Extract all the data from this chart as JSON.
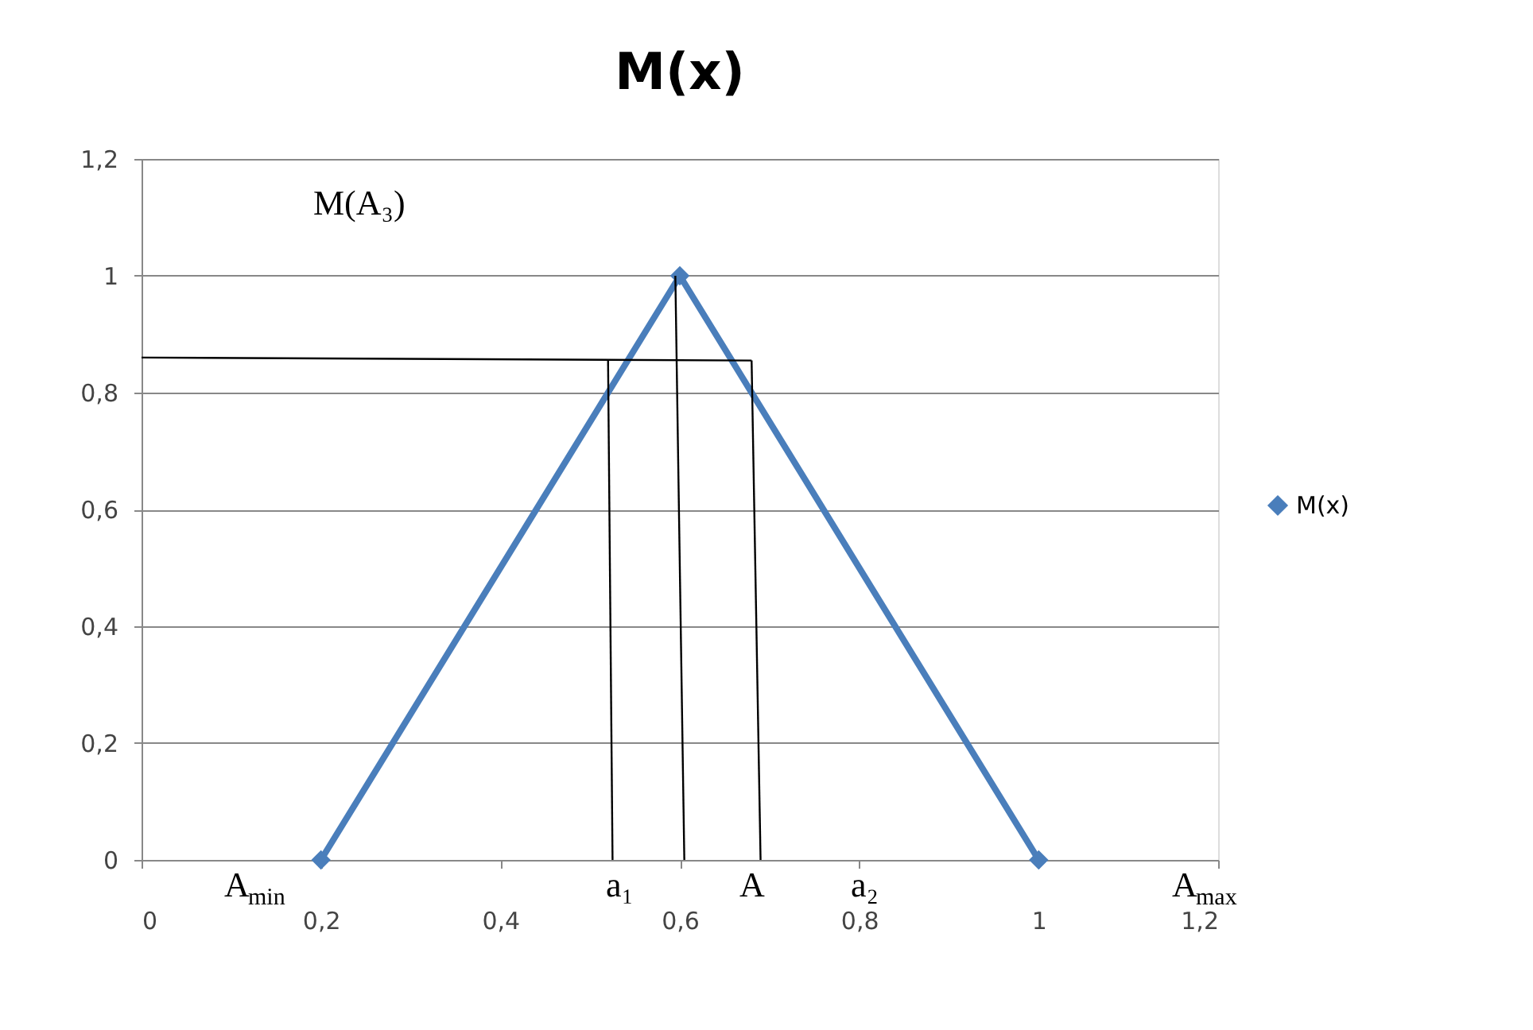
{
  "chart_data": {
    "type": "line",
    "title": "M(x)",
    "series": [
      {
        "name": "M(x)",
        "color": "#4a7ebb",
        "marker": "diamond",
        "x": [
          0.2,
          0.6,
          1.0
        ],
        "values": [
          0,
          1,
          0
        ]
      },
      {
        "type": "line",
        "color": "#000000",
        "marker": "none",
        "x": [
          0.0,
          0.68
        ],
        "values": [
          0.86,
          0.855
        ]
      },
      {
        "type": "line",
        "color": "#000000",
        "marker": "none",
        "x": [
          0.52,
          0.525
        ],
        "values": [
          0.855,
          0
        ]
      },
      {
        "type": "line",
        "color": "#000000",
        "marker": "none",
        "x": [
          0.595,
          0.605
        ],
        "values": [
          1,
          0
        ]
      },
      {
        "type": "line",
        "color": "#000000",
        "marker": "none",
        "x": [
          0.68,
          0.69
        ],
        "values": [
          0.855,
          0
        ]
      }
    ],
    "xlim": [
      0,
      1.2
    ],
    "ylim": [
      0,
      1.2
    ],
    "xticks": [
      0,
      {
        "value": 0.2,
        "label": "0,2"
      },
      {
        "value": 0.4,
        "label": "0,4"
      },
      {
        "value": 0.6,
        "label": "0,6"
      },
      {
        "value": 0.8,
        "label": "0,8"
      },
      1,
      {
        "value": 1.2,
        "label": "1,2"
      }
    ],
    "yticks": [
      0,
      {
        "value": 0.2,
        "label": "0,2"
      },
      {
        "value": 0.4,
        "label": "0,4"
      },
      {
        "value": 0.6,
        "label": "0,6"
      },
      {
        "value": 0.8,
        "label": "0,8"
      },
      1,
      {
        "value": 1.2,
        "label": "1,2"
      }
    ],
    "grid": "y",
    "legend": "right",
    "annotations": [
      "M(A₃)",
      "A$_{min}$",
      "a₁",
      "A",
      "a₂",
      "A$_{max}$"
    ]
  }
}
